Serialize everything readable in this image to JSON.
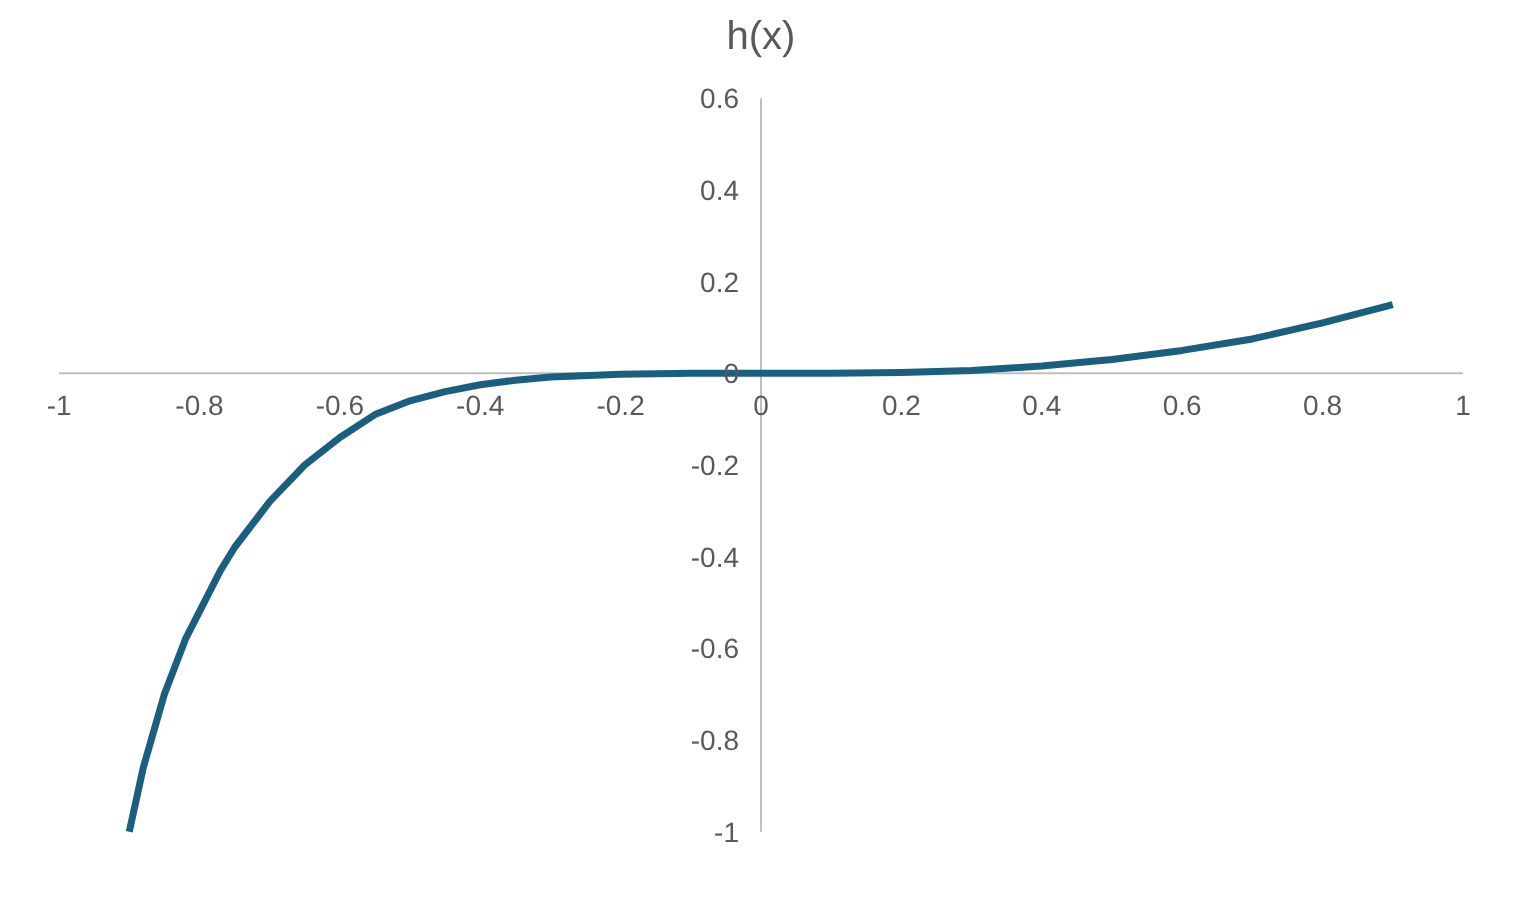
{
  "chart_data": {
    "type": "line",
    "title": "h(x)",
    "series": [
      {
        "color": "#1b5f80",
        "x": [
          -0.9,
          -0.88,
          -0.85,
          -0.82,
          -0.8,
          -0.77,
          -0.75,
          -0.72,
          -0.7,
          -0.65,
          -0.6,
          -0.55,
          -0.5,
          -0.45,
          -0.4,
          -0.35,
          -0.3,
          -0.2,
          -0.1,
          0,
          0.1,
          0.2,
          0.3,
          0.4,
          0.5,
          0.6,
          0.7,
          0.8,
          0.9
        ],
        "values": [
          -1,
          -0.86,
          -0.7,
          -0.58,
          -0.52,
          -0.43,
          -0.38,
          -0.32,
          -0.28,
          -0.2,
          -0.14,
          -0.09,
          -0.06,
          -0.04,
          -0.025,
          -0.015,
          -0.008,
          -0.002,
          0,
          0,
          0,
          0.002,
          0.006,
          0.016,
          0.03,
          0.05,
          0.075,
          0.11,
          0.15
        ]
      }
    ],
    "xlim": [
      -1,
      1
    ],
    "ylim": [
      -1,
      0.6
    ],
    "xticks": [
      -1,
      -0.8,
      -0.6,
      -0.4,
      -0.2,
      0,
      0.2,
      0.4,
      0.6,
      0.8,
      1
    ],
    "yticks": [
      -1,
      -0.8,
      -0.6,
      -0.4,
      -0.2,
      0,
      0.2,
      0.4,
      0.6
    ],
    "grid": false,
    "marker": "none",
    "line_style": "solid"
  }
}
